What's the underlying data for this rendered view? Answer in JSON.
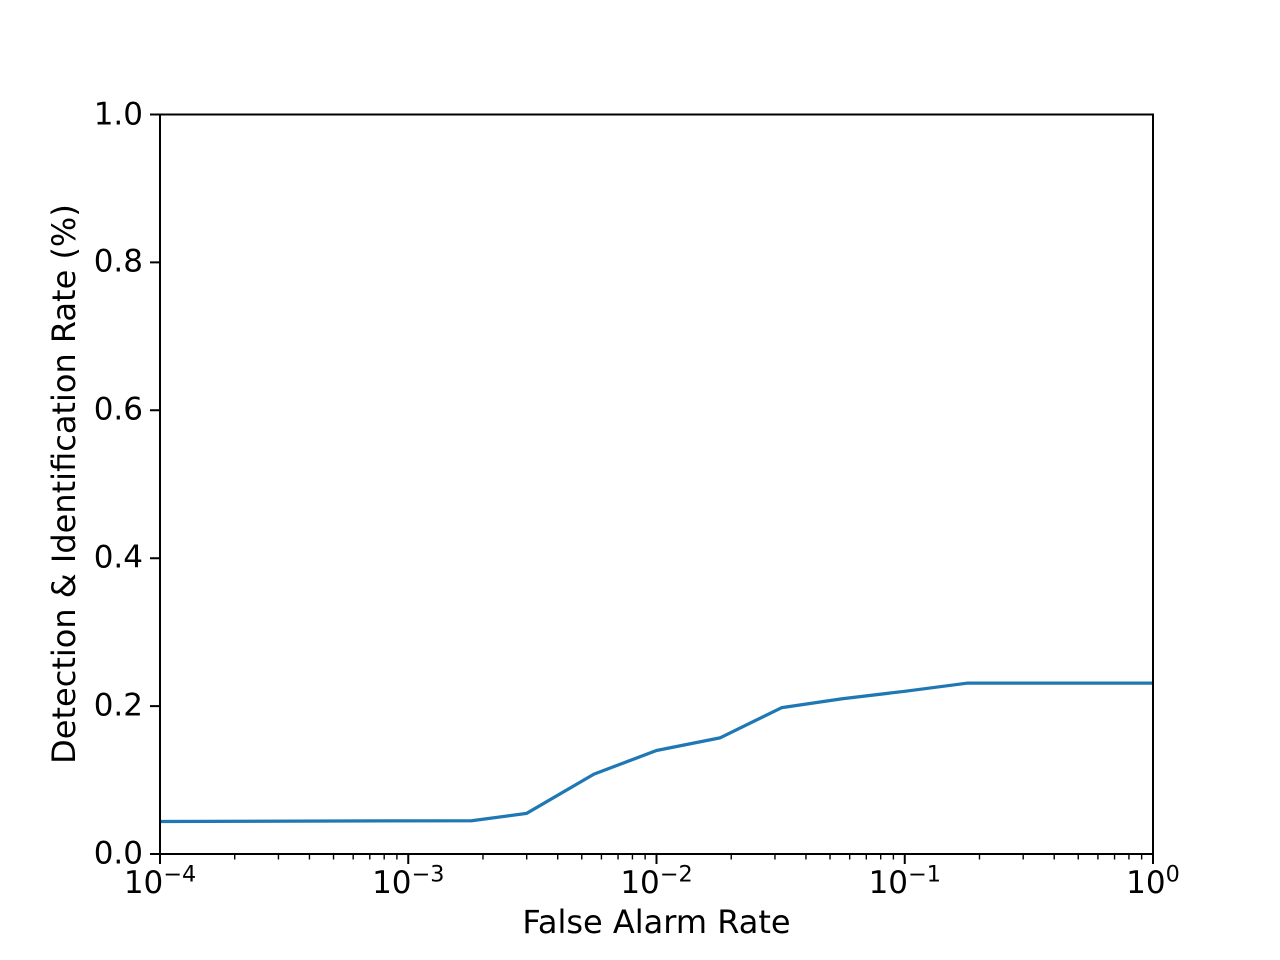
{
  "figure": {
    "background": "#ffffff"
  },
  "chart_data": {
    "type": "line",
    "title": "",
    "xlabel": "False Alarm Rate",
    "ylabel": "Detection & Identification Rate (%)",
    "xscale": "log",
    "yscale": "linear",
    "xlim": [
      0.0001,
      1.0
    ],
    "ylim": [
      0.0,
      1.0
    ],
    "grid": false,
    "legend": "none",
    "axis_color": "#000000",
    "x_ticks": [
      {
        "value": 0.0001,
        "base": "10",
        "exp": "−4"
      },
      {
        "value": 0.001,
        "base": "10",
        "exp": "−3"
      },
      {
        "value": 0.01,
        "base": "10",
        "exp": "−2"
      },
      {
        "value": 0.1,
        "base": "10",
        "exp": "−1"
      },
      {
        "value": 1.0,
        "base": "10",
        "exp": "0"
      }
    ],
    "y_ticks": [
      {
        "value": 0.0,
        "label": "0.0"
      },
      {
        "value": 0.2,
        "label": "0.2"
      },
      {
        "value": 0.4,
        "label": "0.4"
      },
      {
        "value": 0.6,
        "label": "0.6"
      },
      {
        "value": 0.8,
        "label": "0.8"
      },
      {
        "value": 1.0,
        "label": "1.0"
      }
    ],
    "series": [
      {
        "color": "#1f77b4",
        "points": [
          [
            0.0001,
            0.044
          ],
          [
            0.0018,
            0.045
          ],
          [
            0.003,
            0.055
          ],
          [
            0.0056,
            0.108
          ],
          [
            0.01,
            0.14
          ],
          [
            0.018,
            0.157
          ],
          [
            0.032,
            0.198
          ],
          [
            0.056,
            0.21
          ],
          [
            0.1,
            0.22
          ],
          [
            0.178,
            0.231
          ],
          [
            1.0,
            0.231
          ]
        ]
      }
    ]
  }
}
